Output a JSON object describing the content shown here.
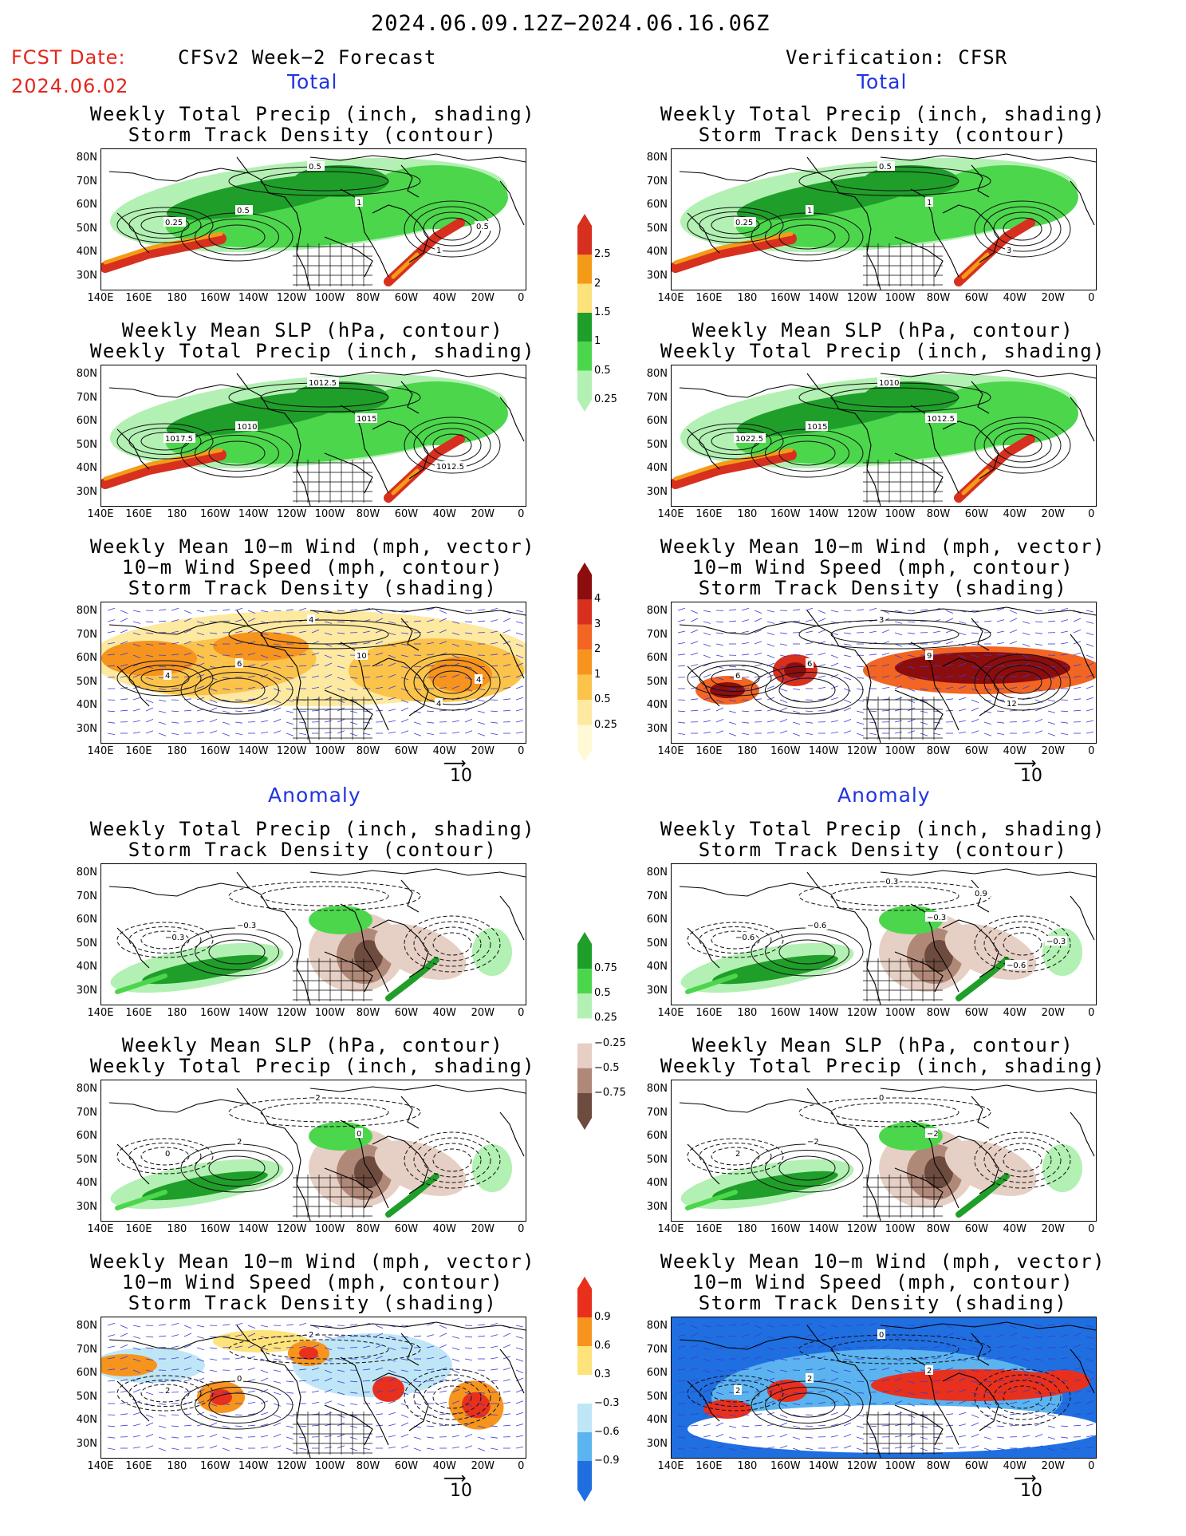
{
  "header": {
    "period": "2024.06.09.12Z−2024.06.16.06Z",
    "fcst_label": "FCST Date:",
    "fcst_date": "2024.06.02",
    "left_title": "CFSv2 Week−2 Forecast",
    "right_title": "Verification: CFSR",
    "total_label": "Total",
    "anomaly_label": "Anomaly"
  },
  "axes": {
    "lat_labels": [
      "80N",
      "70N",
      "60N",
      "50N",
      "40N",
      "30N"
    ],
    "lon_labels": [
      "140E",
      "160E",
      "180",
      "160W",
      "140W",
      "120W",
      "100W",
      "80W",
      "60W",
      "40W",
      "20W",
      "0"
    ]
  },
  "panel_titles": {
    "precip_storm": [
      "Weekly Total Precip (inch, shading)",
      "Storm Track Density (contour)"
    ],
    "slp_precip": [
      "Weekly Mean SLP (hPa, contour)",
      "Weekly Total Precip (inch, shading)"
    ],
    "wind_storm": [
      "Weekly Mean 10−m Wind (mph, vector)",
      "10−m Wind Speed (mph, contour)",
      "Storm Track Density (shading)"
    ]
  },
  "ref_vector_label": "10",
  "colorbars": {
    "precip_total": {
      "labels": [
        "2.5",
        "2",
        "1.5",
        "1",
        "0.5",
        "0.25"
      ],
      "colors": [
        "#d7301f",
        "#f39b16",
        "#fbe27a",
        "#1f9e2a",
        "#4cd64c",
        "#b3f0b3"
      ]
    },
    "storm_total": {
      "labels": [
        "4",
        "3",
        "2",
        "1",
        "0.5",
        "0.25"
      ],
      "colors": [
        "#8c0d0d",
        "#d7301f",
        "#f26522",
        "#f7941d",
        "#fbc349",
        "#fde9a0",
        "#fff9d6"
      ]
    },
    "precip_anom": {
      "labels": [
        "0.75",
        "0.5",
        "0.25",
        "−0.25",
        "−0.5",
        "−0.75"
      ],
      "colors": [
        "#1f9e2a",
        "#4cd64c",
        "#b3f0b3",
        "#ffffff",
        "#e6cfc4",
        "#b08878",
        "#6d4b3f"
      ]
    },
    "storm_anom": {
      "labels": [
        "0.9",
        "0.6",
        "0.3",
        "−0.3",
        "−0.6",
        "−0.9"
      ],
      "colors": [
        "#e8301d",
        "#f7941d",
        "#fde37a",
        "#ffffff",
        "#bfe6f7",
        "#5bb4ef",
        "#1f6fe0"
      ]
    }
  },
  "contour_labels": {
    "fc_precip": [
      "0.25",
      "0.5",
      "0.5",
      "1",
      "1",
      "0.5"
    ],
    "ob_precip": [
      "0.25",
      "1",
      "0.5",
      "1",
      "3"
    ],
    "fc_slp": [
      "1017.5",
      "1010",
      "1012.5",
      "1015",
      "1012.5"
    ],
    "ob_slp": [
      "1022.5",
      "1015",
      "1010",
      "1012.5"
    ],
    "fc_wind": [
      "4",
      "6",
      "4",
      "10",
      "4",
      "4"
    ],
    "ob_wind": [
      "6",
      "6",
      "3",
      "9",
      "12"
    ],
    "fc_anprecip": [
      "−0.3",
      "−0.3"
    ],
    "ob_anprecip": [
      "−0.6",
      "−0.6",
      "−0.3",
      "−0.3",
      "−0.6",
      "−0.3",
      "0.9"
    ],
    "fc_anslp": [
      "0",
      "2",
      "−2",
      "0"
    ],
    "ob_anslp": [
      "2",
      "−2",
      "0",
      "−2"
    ],
    "fc_anwind": [
      "2",
      "0",
      "2"
    ],
    "ob_anwind": [
      "2",
      "2",
      "0",
      "2"
    ]
  }
}
